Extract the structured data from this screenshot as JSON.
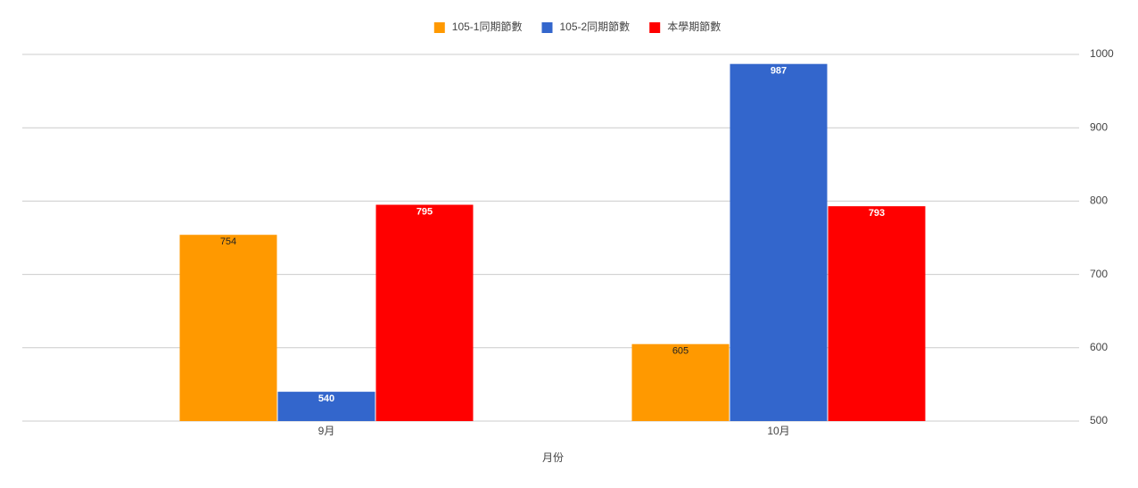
{
  "chart_data": {
    "type": "bar",
    "categories": [
      "9月",
      "10月"
    ],
    "series": [
      {
        "name": "105-1同期節數",
        "color": "#ff9900",
        "values": [
          754,
          605
        ]
      },
      {
        "name": "105-2同期節數",
        "color": "#3366cc",
        "values": [
          540,
          987
        ]
      },
      {
        "name": "本學期節數",
        "color": "#ff0000",
        "values": [
          795,
          793
        ]
      }
    ],
    "x_label": "月份",
    "ylim": [
      500,
      1000
    ],
    "yticks": [
      500,
      600,
      700,
      800,
      900,
      1000
    ],
    "y_axis_side": "right",
    "grid": true,
    "legend": "top",
    "data_labels": true
  }
}
